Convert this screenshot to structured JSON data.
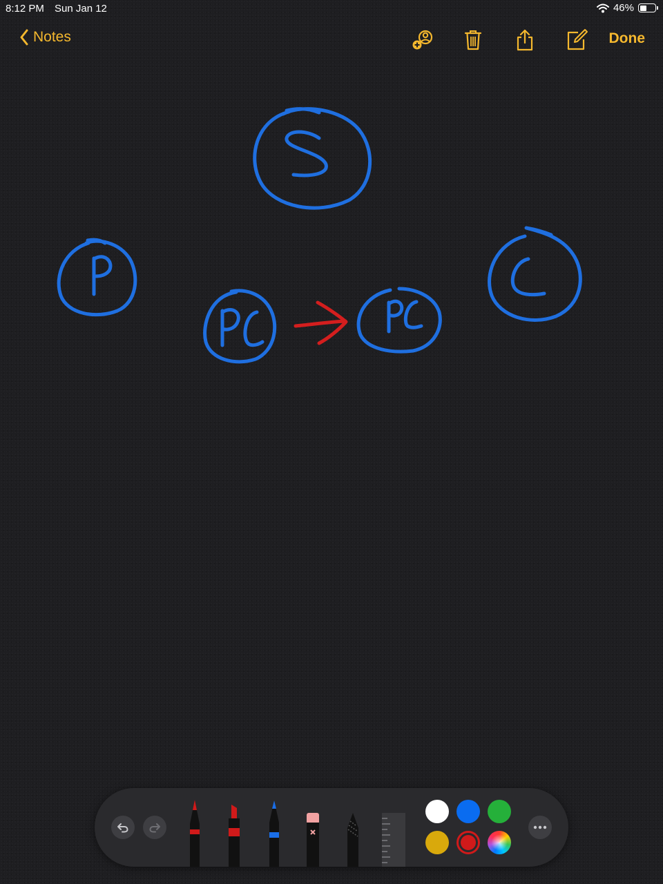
{
  "status_bar": {
    "time": "8:12 PM",
    "date": "Sun Jan 12",
    "battery_percent_text": "46%",
    "battery_level": 0.46,
    "icons": [
      "wifi-icon",
      "battery-icon"
    ]
  },
  "nav": {
    "back_label": "Notes",
    "done_label": "Done",
    "icons": [
      "add-person-icon",
      "trash-icon",
      "share-icon",
      "compose-icon"
    ],
    "accent_color": "#f5b82e"
  },
  "drawing": {
    "ink_blue": "#1f6fe0",
    "ink_red": "#d41e1e",
    "letters": [
      "S",
      "P",
      "C",
      "PC",
      "PC"
    ],
    "arrow": "PC to PC"
  },
  "toolbar": {
    "tools": [
      "pen",
      "marker",
      "pencil",
      "eraser",
      "lasso",
      "ruler"
    ],
    "selected_tool": "marker",
    "colors": [
      {
        "name": "white",
        "hex": "#ffffff"
      },
      {
        "name": "blue",
        "hex": "#0a6cf0"
      },
      {
        "name": "green",
        "hex": "#25b03a"
      },
      {
        "name": "yellow",
        "hex": "#d9a90c"
      },
      {
        "name": "red",
        "hex": "#d01a1a",
        "selected": true
      },
      {
        "name": "color-wheel",
        "hex": "multicolor"
      }
    ],
    "icons": [
      "undo-icon",
      "redo-icon",
      "more-icon"
    ]
  }
}
